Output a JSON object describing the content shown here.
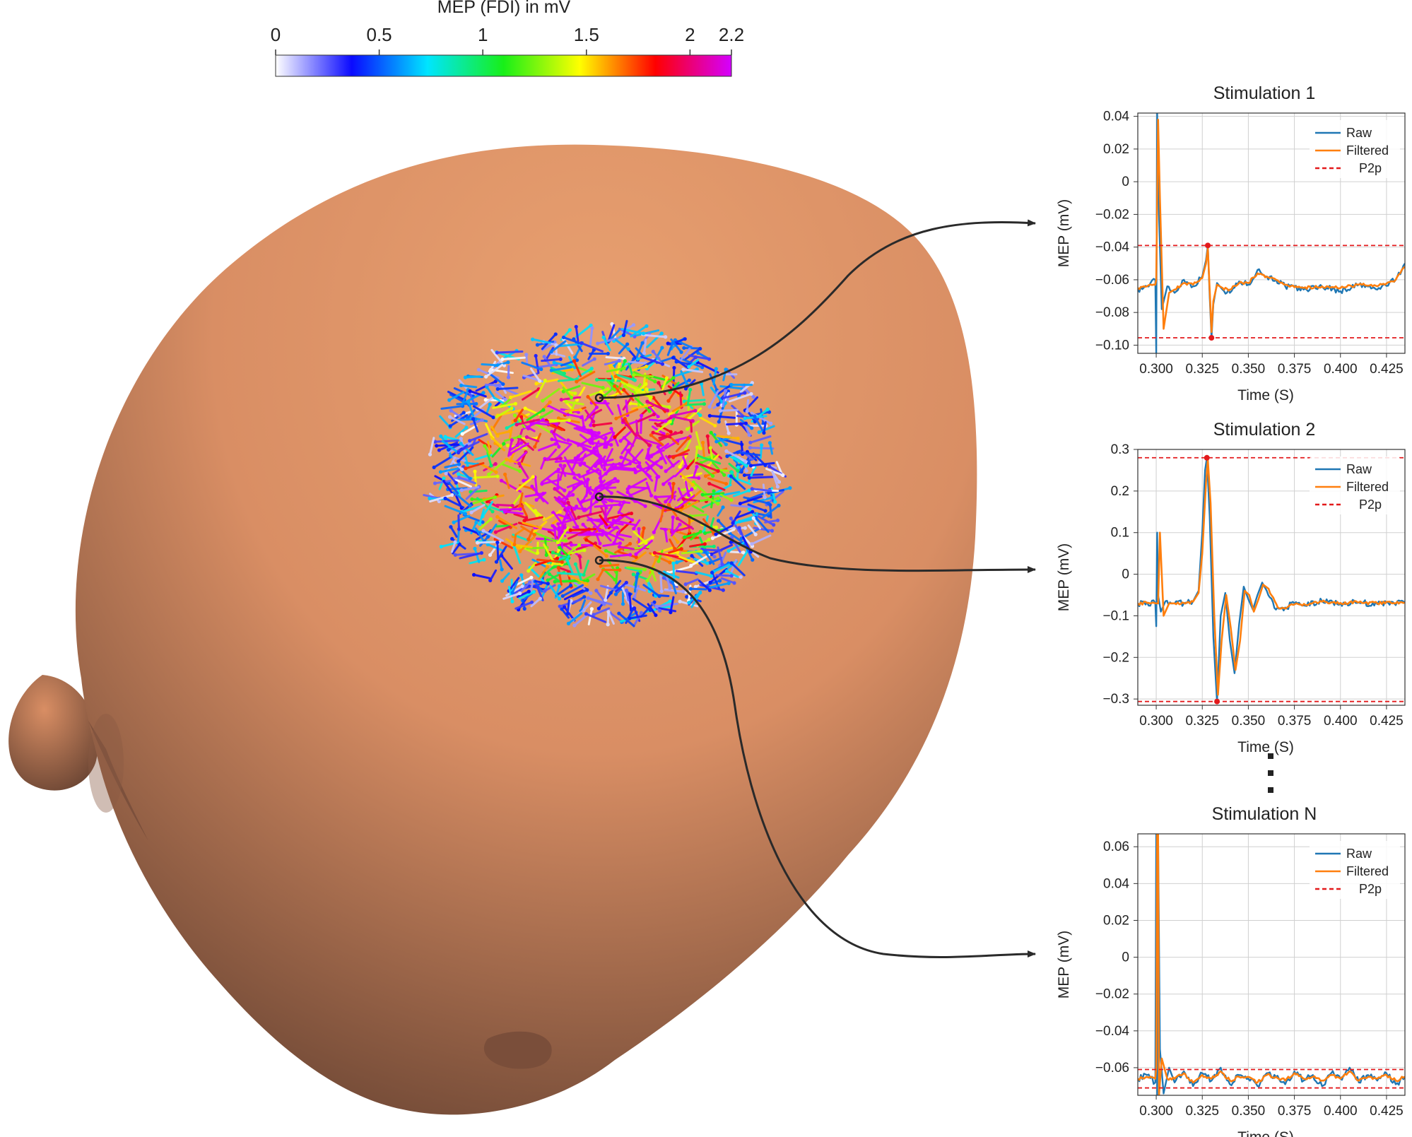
{
  "colorbar": {
    "title": "MEP (FDI) in mV",
    "ticks": [
      {
        "value": 0,
        "label": "0"
      },
      {
        "value": 0.5,
        "label": "0.5"
      },
      {
        "value": 1,
        "label": "1"
      },
      {
        "value": 1.5,
        "label": "1.5"
      },
      {
        "value": 2,
        "label": "2"
      },
      {
        "value": 2.2,
        "label": "2.2"
      }
    ],
    "range": [
      0,
      2.2
    ],
    "stops": [
      "#ffffff",
      "#0a0aff",
      "#00e5ff",
      "#18ef18",
      "#ffff00",
      "#ff0000",
      "#d400ff"
    ]
  },
  "head": {
    "skin_color": "#d98e64",
    "highlight_color": "#e8a070",
    "shadow_color": "#5a3a2c"
  },
  "arrows": {
    "stimulation_points": [
      "Stimulation 1",
      "Stimulation 2",
      "Stimulation N"
    ]
  },
  "ellipsis": "⋮",
  "colors": {
    "raw": "#1f77b4",
    "filtered": "#ff7f0e",
    "p2p": "#e31a1c",
    "grid": "#d0d0d0"
  },
  "chart_data": [
    {
      "type": "line",
      "title": "Stimulation 1",
      "xlabel": "Time (S)",
      "ylabel": "MEP (mV)",
      "xlim": [
        0.29,
        0.435
      ],
      "ylim": [
        -0.105,
        0.042
      ],
      "xticks": [
        0.3,
        0.325,
        0.35,
        0.375,
        0.4,
        0.425
      ],
      "xtick_labels": [
        "0.300",
        "0.325",
        "0.350",
        "0.375",
        "0.400",
        "0.425"
      ],
      "yticks": [
        0.04,
        0.02,
        0,
        -0.02,
        -0.04,
        -0.06,
        -0.08,
        -0.1
      ],
      "ytick_labels": [
        "0.04",
        "0.02",
        "0",
        "−0.02",
        "−0.04",
        "−0.06",
        "−0.08",
        "−0.10"
      ],
      "legend": [
        "Raw",
        "Filtered",
        "P2p"
      ],
      "legend_position": "top-right",
      "grid": true,
      "p2p": [
        -0.039,
        -0.0955
      ],
      "p2p_points": [
        [
          0.328,
          -0.039
        ],
        [
          0.33,
          -0.0955
        ]
      ],
      "series": [
        {
          "name": "Raw",
          "x": [
            0.29,
            0.295,
            0.2995,
            0.3,
            0.3005,
            0.3015,
            0.303,
            0.306,
            0.31,
            0.315,
            0.32,
            0.325,
            0.327,
            0.328,
            0.329,
            0.33,
            0.331,
            0.333,
            0.336,
            0.34,
            0.345,
            0.35,
            0.355,
            0.36,
            0.365,
            0.37,
            0.38,
            0.39,
            0.4,
            0.41,
            0.42,
            0.43,
            0.435
          ],
          "y": [
            -0.066,
            -0.064,
            -0.06,
            -0.105,
            0.042,
            -0.02,
            -0.078,
            -0.064,
            -0.068,
            -0.06,
            -0.064,
            -0.058,
            -0.048,
            -0.039,
            -0.07,
            -0.0955,
            -0.075,
            -0.062,
            -0.066,
            -0.068,
            -0.061,
            -0.063,
            -0.054,
            -0.058,
            -0.06,
            -0.064,
            -0.066,
            -0.064,
            -0.067,
            -0.063,
            -0.066,
            -0.06,
            -0.05
          ]
        },
        {
          "name": "Filtered",
          "x": [
            0.29,
            0.295,
            0.2995,
            0.3,
            0.301,
            0.302,
            0.304,
            0.307,
            0.31,
            0.315,
            0.32,
            0.325,
            0.327,
            0.328,
            0.329,
            0.33,
            0.331,
            0.333,
            0.336,
            0.34,
            0.345,
            0.35,
            0.355,
            0.36,
            0.365,
            0.37,
            0.38,
            0.39,
            0.4,
            0.41,
            0.42,
            0.43,
            0.435
          ],
          "y": [
            -0.065,
            -0.064,
            -0.063,
            -0.06,
            0.038,
            -0.01,
            -0.09,
            -0.068,
            -0.066,
            -0.062,
            -0.063,
            -0.059,
            -0.05,
            -0.041,
            -0.066,
            -0.092,
            -0.073,
            -0.063,
            -0.065,
            -0.066,
            -0.062,
            -0.062,
            -0.056,
            -0.058,
            -0.06,
            -0.063,
            -0.065,
            -0.064,
            -0.065,
            -0.063,
            -0.064,
            -0.06,
            -0.052
          ]
        }
      ]
    },
    {
      "type": "line",
      "title": "Stimulation 2",
      "xlabel": "Time (S)",
      "ylabel": "MEP (mV)",
      "xlim": [
        0.29,
        0.435
      ],
      "ylim": [
        -0.315,
        0.3
      ],
      "xticks": [
        0.3,
        0.325,
        0.35,
        0.375,
        0.4,
        0.425
      ],
      "xtick_labels": [
        "0.300",
        "0.325",
        "0.350",
        "0.375",
        "0.400",
        "0.425"
      ],
      "yticks": [
        0.3,
        0.2,
        0.1,
        0,
        -0.1,
        -0.2,
        -0.3
      ],
      "ytick_labels": [
        "0.3",
        "0.2",
        "0.1",
        "0",
        "−0.1",
        "−0.2",
        "−0.3"
      ],
      "legend": [
        "Raw",
        "Filtered",
        "P2p"
      ],
      "legend_position": "top-right",
      "grid": true,
      "p2p": [
        0.28,
        -0.306
      ],
      "p2p_points": [
        [
          0.3275,
          0.28
        ],
        [
          0.333,
          -0.306
        ]
      ],
      "series": [
        {
          "name": "Raw",
          "x": [
            0.29,
            0.295,
            0.2995,
            0.3,
            0.3005,
            0.301,
            0.3025,
            0.305,
            0.31,
            0.315,
            0.32,
            0.323,
            0.325,
            0.3265,
            0.3275,
            0.329,
            0.331,
            0.333,
            0.335,
            0.3375,
            0.34,
            0.3425,
            0.345,
            0.3475,
            0.35,
            0.3525,
            0.355,
            0.3575,
            0.36,
            0.365,
            0.37,
            0.375,
            0.38,
            0.39,
            0.4,
            0.41,
            0.42,
            0.435
          ],
          "y": [
            -0.07,
            -0.068,
            -0.07,
            -0.125,
            0.1,
            -0.05,
            -0.09,
            -0.065,
            -0.07,
            -0.07,
            -0.065,
            -0.04,
            0.1,
            0.25,
            0.28,
            0.14,
            -0.15,
            -0.306,
            -0.1,
            -0.045,
            -0.16,
            -0.238,
            -0.12,
            -0.03,
            -0.06,
            -0.085,
            -0.05,
            -0.02,
            -0.04,
            -0.085,
            -0.08,
            -0.07,
            -0.075,
            -0.065,
            -0.07,
            -0.068,
            -0.072,
            -0.068
          ]
        },
        {
          "name": "Filtered",
          "x": [
            0.29,
            0.295,
            0.2995,
            0.301,
            0.302,
            0.304,
            0.307,
            0.31,
            0.315,
            0.32,
            0.323,
            0.325,
            0.327,
            0.328,
            0.3295,
            0.3315,
            0.3335,
            0.3355,
            0.338,
            0.3405,
            0.343,
            0.3455,
            0.348,
            0.3505,
            0.353,
            0.3555,
            0.358,
            0.361,
            0.366,
            0.371,
            0.376,
            0.381,
            0.39,
            0.4,
            0.41,
            0.42,
            0.435
          ],
          "y": [
            -0.07,
            -0.069,
            -0.07,
            -0.07,
            0.1,
            -0.1,
            -0.07,
            -0.07,
            -0.069,
            -0.066,
            -0.045,
            0.05,
            0.22,
            0.275,
            0.17,
            -0.1,
            -0.29,
            -0.16,
            -0.05,
            -0.13,
            -0.23,
            -0.16,
            -0.04,
            -0.05,
            -0.09,
            -0.06,
            -0.025,
            -0.035,
            -0.08,
            -0.08,
            -0.07,
            -0.074,
            -0.066,
            -0.069,
            -0.068,
            -0.07,
            -0.068
          ]
        }
      ]
    },
    {
      "type": "line",
      "title": "Stimulation N",
      "xlabel": "Time (S)",
      "ylabel": "MEP (mV)",
      "xlim": [
        0.29,
        0.435
      ],
      "ylim": [
        -0.075,
        0.067
      ],
      "xticks": [
        0.3,
        0.325,
        0.35,
        0.375,
        0.4,
        0.425
      ],
      "xtick_labels": [
        "0.300",
        "0.325",
        "0.350",
        "0.375",
        "0.400",
        "0.425"
      ],
      "yticks": [
        0.06,
        0.04,
        0.02,
        0,
        -0.02,
        -0.04,
        -0.06
      ],
      "ytick_labels": [
        "0.06",
        "0.04",
        "0.02",
        "0",
        "−0.02",
        "−0.04",
        "−0.06"
      ],
      "legend": [
        "Raw",
        "Filtered",
        "P2p"
      ],
      "legend_position": "top-right",
      "grid": true,
      "p2p": [
        -0.061,
        -0.071
      ],
      "p2p_points": [],
      "series": [
        {
          "name": "Raw",
          "x": [
            0.29,
            0.295,
            0.2995,
            0.3,
            0.3005,
            0.301,
            0.302,
            0.304,
            0.307,
            0.31,
            0.315,
            0.32,
            0.325,
            0.33,
            0.335,
            0.34,
            0.345,
            0.35,
            0.355,
            0.36,
            0.365,
            0.37,
            0.375,
            0.38,
            0.385,
            0.39,
            0.395,
            0.4,
            0.405,
            0.41,
            0.415,
            0.42,
            0.425,
            0.43,
            0.435
          ],
          "y": [
            -0.066,
            -0.064,
            -0.068,
            0.067,
            -0.075,
            0.067,
            -0.05,
            -0.074,
            -0.06,
            -0.068,
            -0.062,
            -0.07,
            -0.063,
            -0.067,
            -0.06,
            -0.069,
            -0.064,
            -0.066,
            -0.07,
            -0.063,
            -0.065,
            -0.069,
            -0.062,
            -0.067,
            -0.064,
            -0.07,
            -0.063,
            -0.066,
            -0.06,
            -0.068,
            -0.064,
            -0.067,
            -0.063,
            -0.069,
            -0.065
          ]
        },
        {
          "name": "Filtered",
          "x": [
            0.29,
            0.295,
            0.2995,
            0.3,
            0.3005,
            0.301,
            0.3015,
            0.303,
            0.306,
            0.31,
            0.315,
            0.32,
            0.325,
            0.33,
            0.335,
            0.34,
            0.345,
            0.35,
            0.355,
            0.36,
            0.365,
            0.37,
            0.375,
            0.38,
            0.385,
            0.39,
            0.395,
            0.4,
            0.405,
            0.41,
            0.415,
            0.42,
            0.425,
            0.43,
            0.435
          ],
          "y": [
            -0.066,
            -0.065,
            -0.066,
            -0.06,
            0.067,
            0.067,
            -0.075,
            -0.055,
            -0.066,
            -0.066,
            -0.063,
            -0.068,
            -0.064,
            -0.066,
            -0.062,
            -0.067,
            -0.065,
            -0.065,
            -0.068,
            -0.064,
            -0.065,
            -0.067,
            -0.063,
            -0.066,
            -0.065,
            -0.067,
            -0.064,
            -0.066,
            -0.062,
            -0.067,
            -0.065,
            -0.066,
            -0.064,
            -0.067,
            -0.065
          ]
        }
      ]
    }
  ]
}
